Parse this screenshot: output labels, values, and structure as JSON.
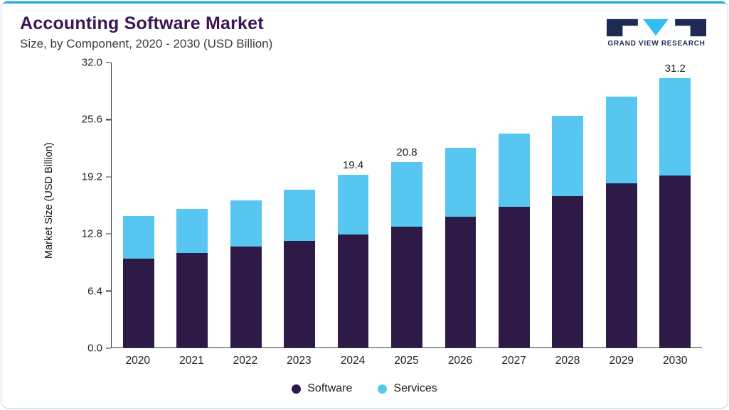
{
  "header": {
    "title": "Accounting Software Market",
    "subtitle": "Size, by Component, 2020 - 2030 (USD Billion)"
  },
  "logo": {
    "text": "GRAND VIEW RESEARCH",
    "navy": "#1e2a53",
    "cyan": "#31bdf2"
  },
  "chart_data": {
    "type": "bar",
    "stacked": true,
    "title": "Accounting Software Market Size, by Component, 2020 - 2030 (USD Billion)",
    "ylabel": "Market Size (USD Billion)",
    "xlabel": "",
    "ylim": [
      0,
      32
    ],
    "yticks": [
      "0.0",
      "6.4",
      "12.8",
      "19.2",
      "25.6",
      "32.0"
    ],
    "grid": false,
    "legend_position": "bottom",
    "categories": [
      "2020",
      "2021",
      "2022",
      "2023",
      "2024",
      "2025",
      "2026",
      "2027",
      "2028",
      "2029",
      "2030"
    ],
    "series": [
      {
        "name": "Software",
        "color": "#2e1a47",
        "values": [
          10.0,
          10.6,
          11.3,
          12.0,
          12.7,
          13.6,
          14.7,
          15.8,
          17.0,
          18.4,
          19.9
        ]
      },
      {
        "name": "Services",
        "color": "#57c6f1",
        "values": [
          4.8,
          5.0,
          5.2,
          5.7,
          6.7,
          7.2,
          7.7,
          8.2,
          9.0,
          9.8,
          11.3
        ]
      }
    ],
    "annotations": [
      {
        "category": "2024",
        "text": "19.4"
      },
      {
        "category": "2025",
        "text": "20.8"
      },
      {
        "category": "2030",
        "text": "31.2"
      }
    ]
  },
  "colors": {
    "accent_top": "#29a9e1",
    "card_border": "#c9d4dc",
    "title_text": "#3a1654",
    "axis": "#3c3c3c",
    "software": "#2e1a47",
    "services": "#57c6f1"
  }
}
